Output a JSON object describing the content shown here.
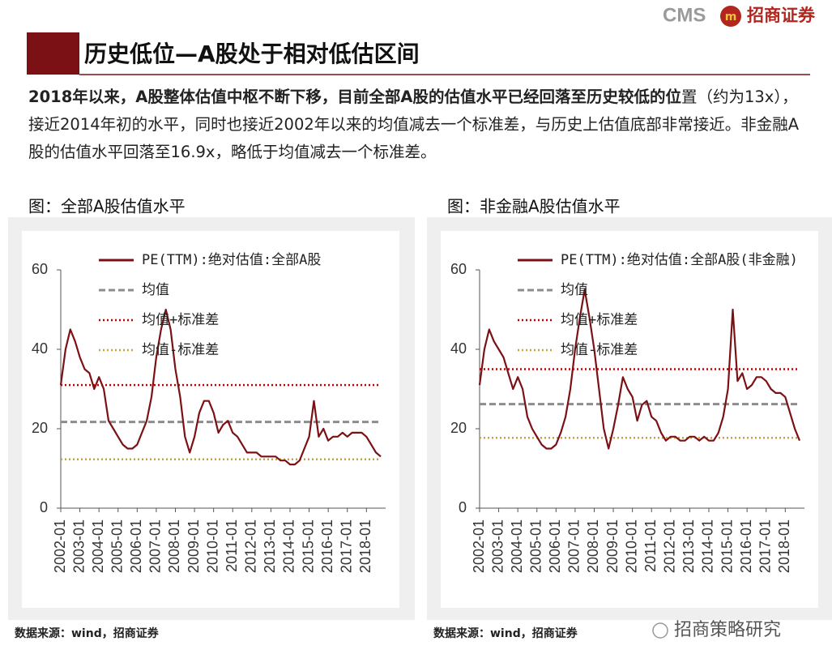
{
  "header": {
    "logo_text": "CMS",
    "logo_mark": "m",
    "brand": "招商证券",
    "title": "历史低位—A股处于相对低估区间",
    "summary_bold": "2018年以来，A股整体估值中枢不断下移，目前全部A股的估值水平已经回落至历史较低的位",
    "summary_rest": "置（约为13x），接近2014年初的水平，同时也接近2002年以来的均值减去一个标准差，与历史上估值底部非常接近。非金融A股的估值水平回落至16.9x，略低于均值减去一个标准差。"
  },
  "chart_data": [
    {
      "type": "line",
      "title": "图：全部A股估值水平",
      "source": "数据来源：wind，招商证券",
      "categories": [
        "2002-01",
        null,
        null,
        null,
        "2003-01",
        null,
        null,
        null,
        "2004-01",
        null,
        null,
        null,
        "2005-01",
        null,
        null,
        null,
        "2006-01",
        null,
        null,
        null,
        "2007-01",
        null,
        null,
        null,
        "2008-01",
        null,
        null,
        null,
        "2009-01",
        null,
        null,
        null,
        "2010-01",
        null,
        null,
        null,
        "2011-01",
        null,
        null,
        null,
        "2012-01",
        null,
        null,
        null,
        "2013-01",
        null,
        null,
        null,
        "2014-01",
        null,
        null,
        null,
        "2015-01",
        null,
        null,
        null,
        "2016-01",
        null,
        null,
        null,
        "2017-01",
        null,
        null,
        null,
        "2018-01",
        null,
        null,
        null
      ],
      "series": [
        {
          "name": "PE(TTM):绝对估值:全部A股",
          "color": "#7b1114",
          "values": [
            31,
            40,
            45,
            42,
            38,
            35,
            34,
            30,
            33,
            30,
            22,
            20,
            18,
            16,
            15,
            15,
            16,
            19,
            22,
            28,
            38,
            45,
            50,
            45,
            35,
            28,
            18,
            14,
            18,
            24,
            27,
            27,
            24,
            19,
            21,
            22,
            19,
            18,
            16,
            14,
            14,
            14,
            13,
            13,
            13,
            13,
            12,
            12,
            11,
            11,
            12,
            15,
            18,
            27,
            18,
            20,
            17,
            18,
            18,
            19,
            18,
            19,
            19,
            19,
            18,
            16,
            14,
            13
          ]
        }
      ],
      "reference_lines": [
        {
          "name": "均值",
          "color": "#8c8c8c",
          "style": "dashed",
          "value": 21.7
        },
        {
          "name": "均值+标准差",
          "color": "#c00000",
          "style": "dotted",
          "value": 31
        },
        {
          "name": "均值-标准差",
          "color": "#c9a23c",
          "style": "dotted",
          "value": 12.3
        }
      ],
      "ylim": [
        0,
        60
      ],
      "yticks": [
        0,
        20,
        40,
        60
      ]
    },
    {
      "type": "line",
      "title": "图：非金融A股估值水平",
      "source": "数据来源：wind，招商证券",
      "categories": [
        "2002-01",
        null,
        null,
        null,
        "2003-01",
        null,
        null,
        null,
        "2004-01",
        null,
        null,
        null,
        "2005-01",
        null,
        null,
        null,
        "2006-01",
        null,
        null,
        null,
        "2007-01",
        null,
        null,
        null,
        "2008-01",
        null,
        null,
        null,
        "2009-01",
        null,
        null,
        null,
        "2010-01",
        null,
        null,
        null,
        "2011-01",
        null,
        null,
        null,
        "2012-01",
        null,
        null,
        null,
        "2013-01",
        null,
        null,
        null,
        "2014-01",
        null,
        null,
        null,
        "2015-01",
        null,
        null,
        null,
        "2016-01",
        null,
        null,
        null,
        "2017-01",
        null,
        null,
        null,
        "2018-01",
        null,
        null,
        null
      ],
      "series": [
        {
          "name": "PE(TTM):绝对估值:全部A股(非金融)",
          "color": "#7b1114",
          "values": [
            31,
            40,
            45,
            42,
            40,
            38,
            34,
            30,
            33,
            30,
            23,
            20,
            18,
            16,
            15,
            15,
            16,
            19,
            23,
            30,
            40,
            48,
            55,
            48,
            40,
            30,
            20,
            15,
            20,
            26,
            33,
            30,
            28,
            22,
            26,
            27,
            23,
            22,
            19,
            17,
            18,
            18,
            17,
            17,
            18,
            18,
            17,
            18,
            17,
            17,
            19,
            23,
            30,
            50,
            32,
            34,
            30,
            31,
            33,
            33,
            32,
            30,
            29,
            29,
            28,
            24,
            20,
            17
          ]
        }
      ],
      "reference_lines": [
        {
          "name": "均值",
          "color": "#8c8c8c",
          "style": "dashed",
          "value": 26.2
        },
        {
          "name": "均值+标准差",
          "color": "#c00000",
          "style": "dotted",
          "value": 35
        },
        {
          "name": "均值-标准差",
          "color": "#c9a23c",
          "style": "dotted",
          "value": 17.7
        }
      ],
      "ylim": [
        0,
        60
      ],
      "yticks": [
        0,
        20,
        40,
        60
      ]
    }
  ],
  "watermark": "招商策略研究"
}
